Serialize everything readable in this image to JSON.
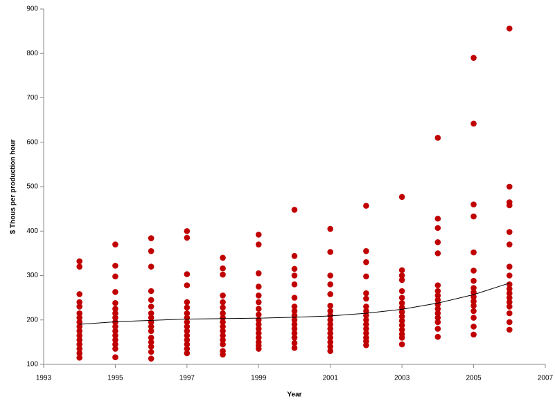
{
  "chart_data": {
    "type": "scatter",
    "x_label": "Year",
    "y_label": "$ Thous per production hour",
    "xlim": [
      1993,
      2007
    ],
    "xticks": [
      1993,
      1995,
      1997,
      1999,
      2001,
      2003,
      2005,
      2007
    ],
    "ylim": [
      100,
      900
    ],
    "yticks": [
      100,
      200,
      300,
      400,
      500,
      600,
      700,
      800,
      900
    ],
    "grid": false,
    "series": [
      {
        "type": "scatter",
        "color": "#c00000",
        "x": [
          1994,
          1994,
          1994,
          1994,
          1994,
          1994,
          1994,
          1994,
          1994,
          1994,
          1994,
          1994,
          1994,
          1994,
          1994,
          1994,
          1995,
          1995,
          1995,
          1995,
          1995,
          1995,
          1995,
          1995,
          1995,
          1995,
          1995,
          1995,
          1995,
          1995,
          1995,
          1995,
          1996,
          1996,
          1996,
          1996,
          1996,
          1996,
          1996,
          1996,
          1996,
          1996,
          1996,
          1996,
          1996,
          1996,
          1996,
          1996,
          1997,
          1997,
          1997,
          1997,
          1997,
          1997,
          1997,
          1997,
          1997,
          1997,
          1997,
          1997,
          1997,
          1997,
          1997,
          1997,
          1998,
          1998,
          1998,
          1998,
          1998,
          1998,
          1998,
          1998,
          1998,
          1998,
          1998,
          1998,
          1998,
          1998,
          1998,
          1998,
          1999,
          1999,
          1999,
          1999,
          1999,
          1999,
          1999,
          1999,
          1999,
          1999,
          1999,
          1999,
          1999,
          1999,
          1999,
          1999,
          2000,
          2000,
          2000,
          2000,
          2000,
          2000,
          2000,
          2000,
          2000,
          2000,
          2000,
          2000,
          2000,
          2000,
          2000,
          2000,
          2001,
          2001,
          2001,
          2001,
          2001,
          2001,
          2001,
          2001,
          2001,
          2001,
          2001,
          2001,
          2001,
          2001,
          2001,
          2001,
          2002,
          2002,
          2002,
          2002,
          2002,
          2002,
          2002,
          2002,
          2002,
          2002,
          2002,
          2002,
          2002,
          2002,
          2002,
          2002,
          2003,
          2003,
          2003,
          2003,
          2003,
          2003,
          2003,
          2003,
          2003,
          2003,
          2003,
          2003,
          2003,
          2003,
          2003,
          2003,
          2004,
          2004,
          2004,
          2004,
          2004,
          2004,
          2004,
          2004,
          2004,
          2004,
          2004,
          2004,
          2004,
          2004,
          2004,
          2004,
          2005,
          2005,
          2005,
          2005,
          2005,
          2005,
          2005,
          2005,
          2005,
          2005,
          2005,
          2005,
          2005,
          2005,
          2005,
          2005,
          2006,
          2006,
          2006,
          2006,
          2006,
          2006,
          2006,
          2006,
          2006,
          2006,
          2006,
          2006,
          2006,
          2006,
          2006,
          2006,
          2006
        ],
        "values": [
          332,
          320,
          258,
          240,
          230,
          215,
          205,
          195,
          185,
          175,
          165,
          155,
          145,
          135,
          125,
          115,
          370,
          322,
          298,
          263,
          238,
          225,
          215,
          205,
          195,
          185,
          175,
          165,
          155,
          145,
          135,
          116,
          384,
          355,
          320,
          265,
          245,
          230,
          215,
          205,
          195,
          185,
          175,
          160,
          150,
          140,
          128,
          113,
          400,
          385,
          303,
          278,
          240,
          228,
          215,
          205,
          195,
          185,
          175,
          165,
          155,
          145,
          135,
          125,
          340,
          316,
          302,
          255,
          240,
          228,
          215,
          205,
          195,
          185,
          175,
          165,
          155,
          145,
          130,
          122,
          392,
          370,
          305,
          275,
          255,
          240,
          225,
          212,
          200,
          190,
          180,
          170,
          160,
          150,
          142,
          135,
          448,
          344,
          315,
          300,
          280,
          250,
          230,
          220,
          210,
          200,
          190,
          180,
          170,
          160,
          148,
          137,
          405,
          353,
          300,
          280,
          258,
          232,
          220,
          210,
          200,
          190,
          180,
          170,
          160,
          150,
          140,
          130,
          457,
          355,
          330,
          298,
          260,
          248,
          230,
          220,
          210,
          200,
          190,
          180,
          170,
          160,
          152,
          143,
          477,
          312,
          300,
          290,
          265,
          250,
          238,
          228,
          218,
          208,
          198,
          188,
          178,
          168,
          160,
          145,
          610,
          428,
          407,
          375,
          350,
          278,
          265,
          255,
          245,
          235,
          225,
          215,
          205,
          195,
          180,
          162,
          790,
          642,
          460,
          433,
          352,
          311,
          288,
          272,
          262,
          252,
          242,
          232,
          220,
          205,
          185,
          167,
          856,
          500,
          465,
          458,
          398,
          370,
          320,
          300,
          280,
          270,
          260,
          250,
          240,
          230,
          215,
          195,
          178
        ]
      },
      {
        "type": "line",
        "color": "#000000",
        "x": [
          1994,
          1995,
          1996,
          1997,
          1998,
          1999,
          2000,
          2001,
          2002,
          2003,
          2004,
          2005,
          2006
        ],
        "values": [
          190,
          196,
          199,
          202,
          203,
          204,
          206,
          209,
          215,
          224,
          238,
          257,
          283
        ]
      }
    ]
  }
}
